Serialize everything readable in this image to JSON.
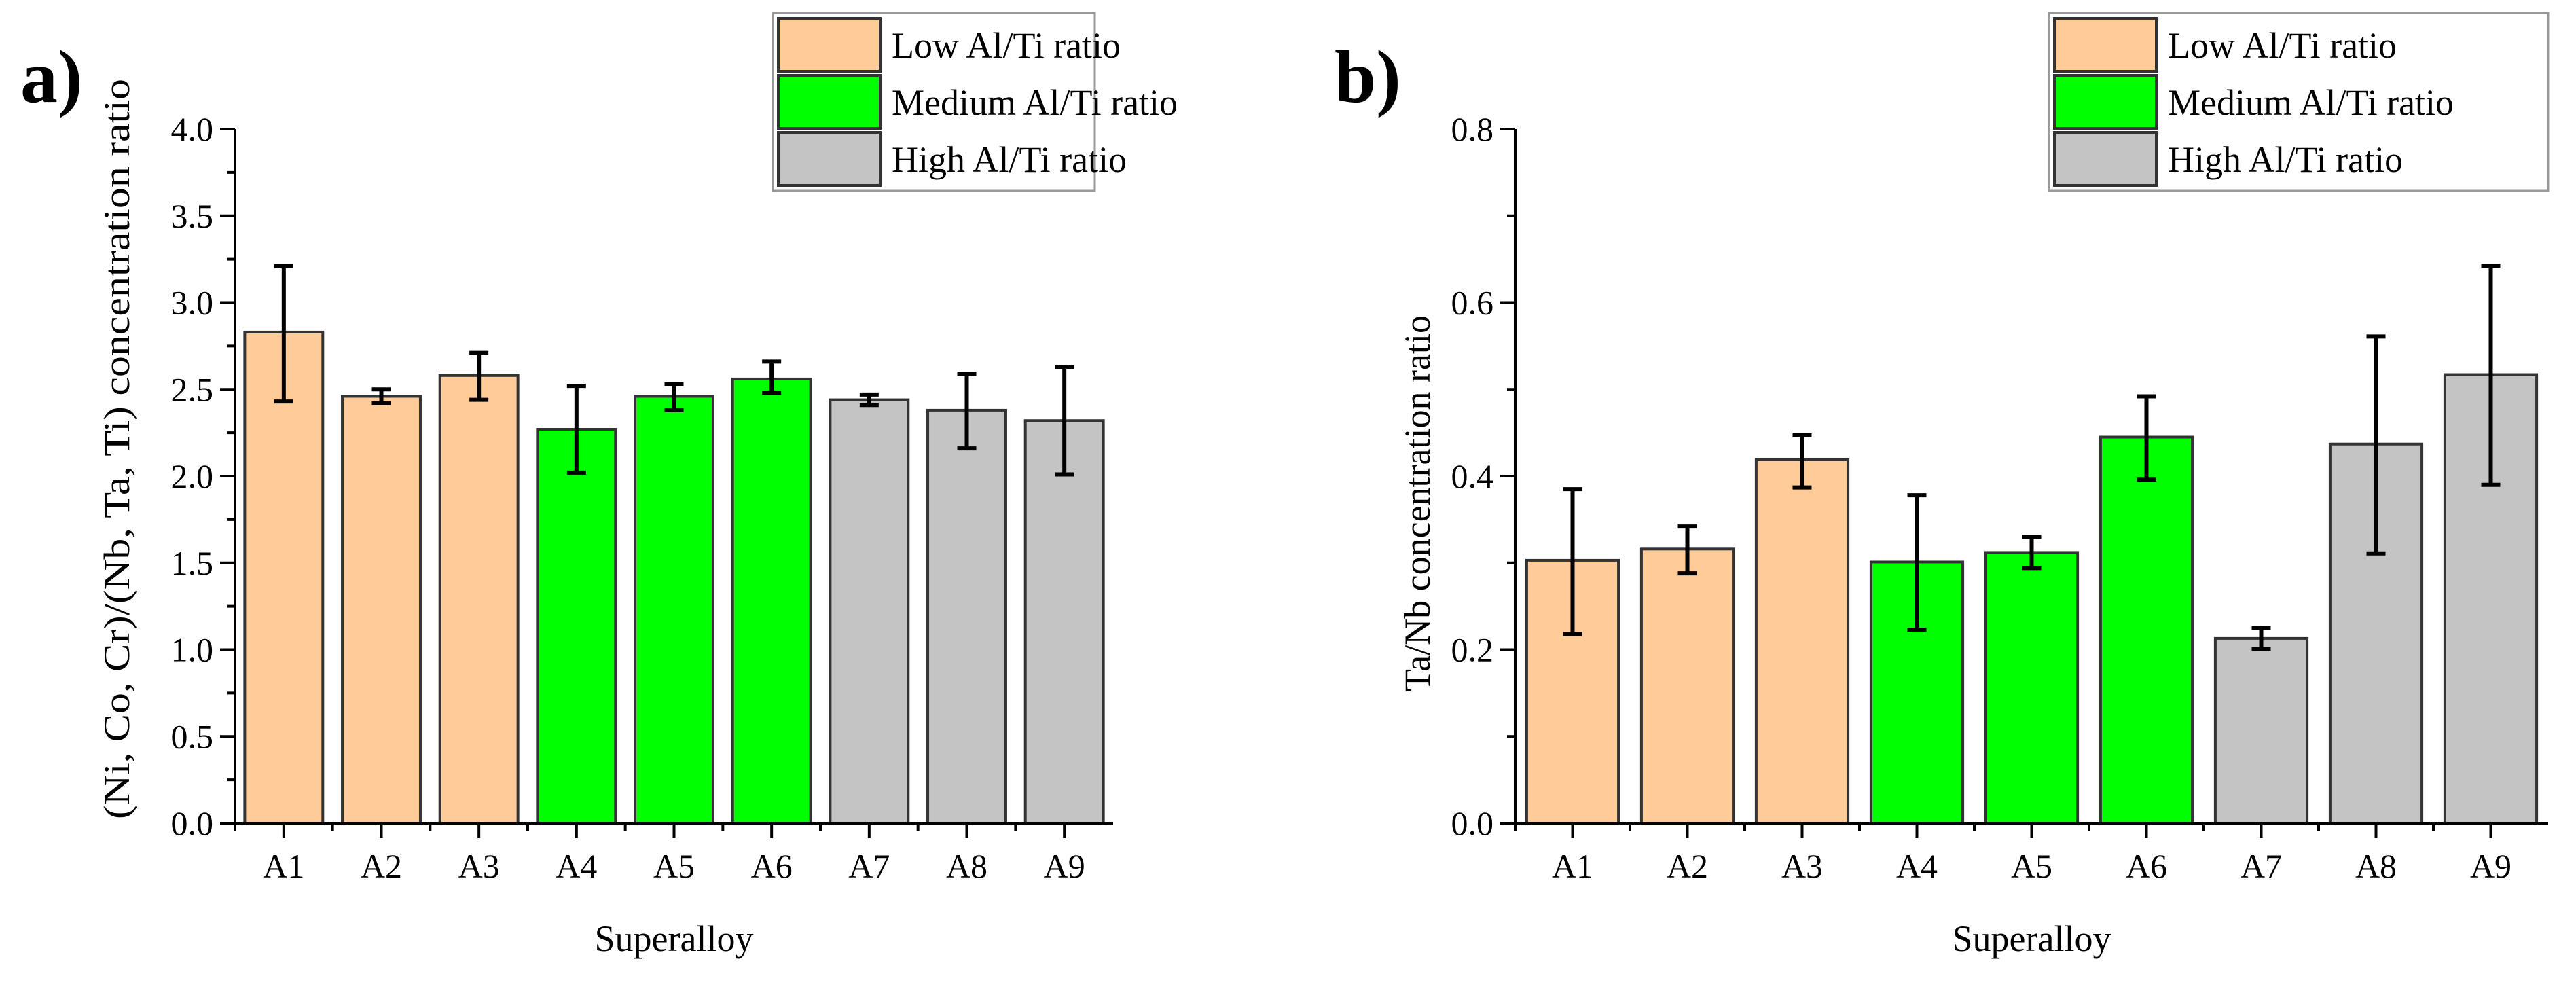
{
  "colors": {
    "low": "#FFCC99",
    "medium": "#00FF00",
    "high": "#C4C4C4"
  },
  "chart_data": [
    {
      "type": "bar",
      "panel_label": "a)",
      "title": "",
      "xlabel": "Superalloy",
      "ylabel": "(Ni, Co, Cr)/(Nb, Ta, Ti) concentration ratio",
      "ylim": [
        0,
        4.0
      ],
      "yticks": [
        "0.0",
        "0.5",
        "1.0",
        "1.5",
        "2.0",
        "2.5",
        "3.0",
        "3.5",
        "4.0"
      ],
      "categories": [
        "A1",
        "A2",
        "A3",
        "A4",
        "A5",
        "A6",
        "A7",
        "A8",
        "A9"
      ],
      "groups": [
        "low",
        "low",
        "low",
        "medium",
        "medium",
        "medium",
        "high",
        "high",
        "high"
      ],
      "values": [
        2.83,
        2.46,
        2.58,
        2.27,
        2.46,
        2.56,
        2.44,
        2.38,
        2.32
      ],
      "error_low": [
        2.43,
        2.42,
        2.44,
        2.02,
        2.38,
        2.48,
        2.41,
        2.16,
        2.01
      ],
      "error_high": [
        3.21,
        2.5,
        2.71,
        2.52,
        2.53,
        2.66,
        2.47,
        2.59,
        2.63
      ],
      "legend": [
        "Low Al/Ti ratio",
        "Medium Al/Ti ratio",
        "High Al/Ti ratio"
      ],
      "legend_position": "top-right",
      "grid": false
    },
    {
      "type": "bar",
      "panel_label": "b)",
      "title": "",
      "xlabel": "Superalloy",
      "ylabel": "Ta/Nb concentration ratio",
      "ylim": [
        0,
        0.8
      ],
      "yticks": [
        "0.0",
        "0.2",
        "0.4",
        "0.6",
        "0.8"
      ],
      "categories": [
        "A1",
        "A2",
        "A3",
        "A4",
        "A5",
        "A6",
        "A7",
        "A8",
        "A9"
      ],
      "groups": [
        "low",
        "low",
        "low",
        "medium",
        "medium",
        "medium",
        "high",
        "high",
        "high"
      ],
      "values": [
        0.303,
        0.316,
        0.419,
        0.301,
        0.312,
        0.445,
        0.213,
        0.437,
        0.517
      ],
      "error_low": [
        0.218,
        0.288,
        0.387,
        0.223,
        0.294,
        0.396,
        0.201,
        0.311,
        0.39
      ],
      "error_high": [
        0.385,
        0.342,
        0.447,
        0.378,
        0.33,
        0.492,
        0.225,
        0.561,
        0.642
      ],
      "legend": [
        "Low Al/Ti ratio",
        "Medium Al/Ti ratio",
        "High Al/Ti ratio"
      ],
      "legend_position": "top-right",
      "grid": false
    }
  ]
}
